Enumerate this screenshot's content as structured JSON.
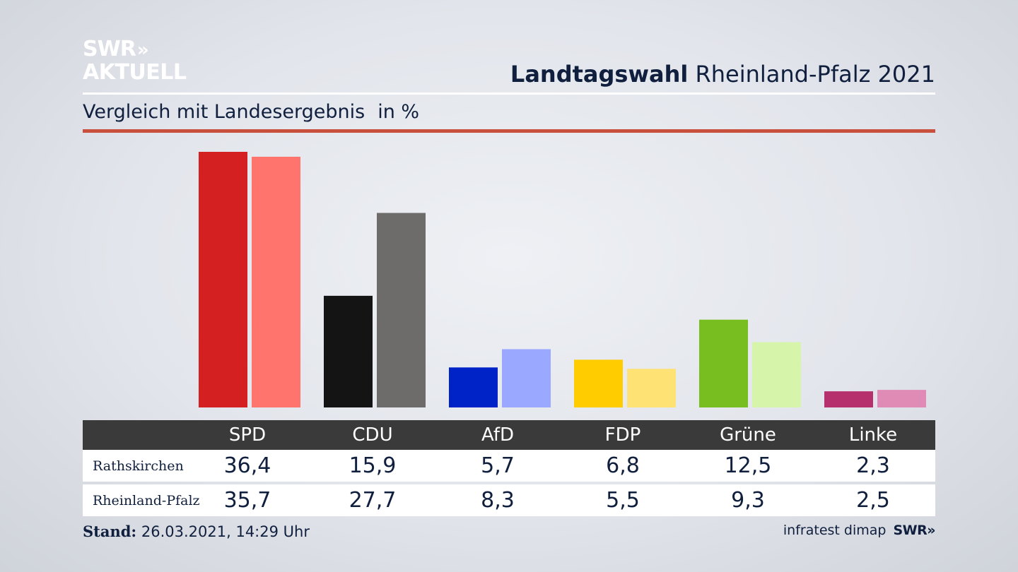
{
  "logo": {
    "line1": "SWR",
    "chevrons": "»",
    "line2": "AKTUELL"
  },
  "header": {
    "title_bold": "Landtagswahl",
    "title_rest": "Rheinland-Pfalz 2021"
  },
  "subtitle": {
    "text": "Vergleich mit Landesergebnis",
    "unit": "in %"
  },
  "colors": {
    "header_rule": "#ffffff",
    "accent_rule": "#c9503c",
    "table_header_bg": "#3a3a3a"
  },
  "chart_data": {
    "type": "bar",
    "categories": [
      "SPD",
      "CDU",
      "AfD",
      "FDP",
      "Grüne",
      "Linke"
    ],
    "series": [
      {
        "name": "Rathskirchen",
        "values": [
          36.4,
          15.9,
          5.7,
          6.8,
          12.5,
          2.3
        ],
        "colors": [
          "#d42020",
          "#141414",
          "#0023c8",
          "#ffcc00",
          "#78be20",
          "#b6306e"
        ]
      },
      {
        "name": "Rheinland-Pfalz",
        "values": [
          35.7,
          27.7,
          8.3,
          5.5,
          9.3,
          2.5
        ],
        "colors": [
          "#ff746c",
          "#6e6c6b",
          "#9aa8ff",
          "#ffe274",
          "#d6f5aa",
          "#e08ab6"
        ]
      }
    ],
    "value_format": "comma-decimal",
    "ylim": [
      0,
      36.4
    ],
    "grid": false,
    "legend": "table below chart"
  },
  "table": {
    "headers": [
      "SPD",
      "CDU",
      "AfD",
      "FDP",
      "Grüne",
      "Linke"
    ],
    "rows": [
      {
        "label": "Rathskirchen",
        "values": [
          "36,4",
          "15,9",
          "5,7",
          "6,8",
          "12,5",
          "2,3"
        ]
      },
      {
        "label": "Rheinland-Pfalz",
        "values": [
          "35,7",
          "27,7",
          "8,3",
          "5,5",
          "9,3",
          "2,5"
        ]
      }
    ]
  },
  "footer": {
    "stand_label": "Stand:",
    "stand_value": "26.03.2021, 14:29 Uhr",
    "source": "infratest dimap",
    "brand": "SWR»"
  }
}
